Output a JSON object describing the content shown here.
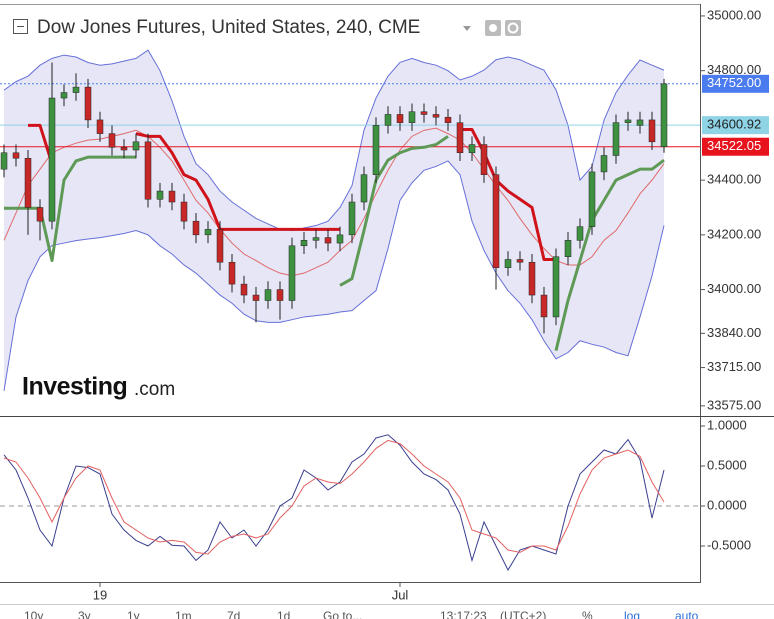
{
  "header": {
    "title": "Dow Jones Futures, United States, 240, CME"
  },
  "logo": {
    "name": "Investing",
    "suffix": ".com"
  },
  "toolbar": [
    "10y",
    "3y",
    "1y",
    "1m",
    "7d",
    "1d",
    "Go to...",
    "13:17:23",
    "(UTC+2)",
    "%",
    "log",
    "auto"
  ],
  "chart_data": [
    {
      "type": "candlestick",
      "title": "Dow Jones Futures, United States, 240, CME",
      "categories": [
        null,
        null,
        null,
        null,
        null,
        null,
        null,
        null,
        "19",
        null,
        null,
        null,
        null,
        null,
        null,
        null,
        null,
        null,
        null,
        null,
        null,
        null,
        null,
        null,
        null,
        null,
        null,
        null,
        null,
        null,
        null,
        null,
        null,
        "Jul",
        null,
        null,
        null,
        null,
        null,
        null,
        null,
        null,
        null,
        null,
        null,
        null,
        null,
        null,
        null,
        null,
        null,
        null,
        null,
        null,
        null,
        null
      ],
      "open": [
        34440,
        34500,
        34480,
        34300,
        34250,
        34700,
        34720,
        34740,
        34620,
        34570,
        34520,
        34510,
        34540,
        34330,
        34360,
        34320,
        34250,
        34200,
        34220,
        34100,
        34020,
        33980,
        33960,
        34000,
        33960,
        34160,
        34180,
        34190,
        34170,
        34200,
        34320,
        34420,
        34600,
        34640,
        34610,
        34650,
        34640,
        34630,
        34610,
        34500,
        34530,
        34420,
        34080,
        34110,
        34100,
        33980,
        33900,
        34120,
        34180,
        34230,
        34430,
        34490,
        34610,
        34600,
        34620,
        34522
      ],
      "high": [
        34530,
        34530,
        34510,
        34330,
        34830,
        34750,
        34790,
        34770,
        34650,
        34600,
        34550,
        34570,
        34570,
        34390,
        34390,
        34350,
        34280,
        34250,
        34250,
        34130,
        34050,
        34010,
        34030,
        34030,
        34190,
        34210,
        34220,
        34220,
        34230,
        34350,
        34450,
        34630,
        34670,
        34670,
        34680,
        34680,
        34670,
        34660,
        34640,
        34560,
        34560,
        34450,
        34140,
        34140,
        34130,
        34010,
        34150,
        34210,
        34260,
        34460,
        34520,
        34640,
        34650,
        34650,
        34650,
        34770
      ],
      "low": [
        34410,
        34450,
        34200,
        34180,
        34220,
        34670,
        34690,
        34590,
        34540,
        34490,
        34480,
        34480,
        34300,
        34300,
        34290,
        34220,
        34170,
        34170,
        34070,
        33990,
        33950,
        33880,
        33930,
        33890,
        33930,
        34130,
        34150,
        34140,
        34140,
        34170,
        34290,
        34390,
        34570,
        34580,
        34580,
        34610,
        34600,
        34580,
        34470,
        34470,
        34390,
        34000,
        34050,
        34070,
        33950,
        33840,
        33870,
        34090,
        34150,
        34200,
        34400,
        34460,
        34580,
        34570,
        34510,
        34500
      ],
      "close": [
        34500,
        34480,
        34300,
        34250,
        34700,
        34720,
        34740,
        34620,
        34570,
        34520,
        34510,
        34540,
        34330,
        34360,
        34320,
        34250,
        34200,
        34220,
        34100,
        34020,
        33980,
        33960,
        34000,
        33960,
        34160,
        34180,
        34190,
        34170,
        34200,
        34320,
        34420,
        34600,
        34640,
        34610,
        34650,
        34640,
        34630,
        34610,
        34500,
        34530,
        34420,
        34080,
        34110,
        34100,
        33980,
        33900,
        34120,
        34180,
        34230,
        34430,
        34490,
        34610,
        34620,
        34620,
        34540,
        34752
      ],
      "up_color": "#3f9142",
      "down_color": "#c62828",
      "band": {
        "fill": "#e6e6f6",
        "upper": {
          "color": "#6670d8",
          "values": [
            34729,
            34760,
            34780,
            34820,
            34845,
            34857,
            34850,
            34830,
            34820,
            34825,
            34835,
            34845,
            34875,
            34800,
            34690,
            34560,
            34460,
            34420,
            34360,
            34320,
            34290,
            34260,
            34240,
            34220,
            34216,
            34225,
            34234,
            34250,
            34300,
            34380,
            34582,
            34700,
            34780,
            34830,
            34845,
            34830,
            34820,
            34800,
            34766,
            34780,
            34802,
            34840,
            34850,
            34840,
            34820,
            34802,
            34730,
            34600,
            34400,
            34450,
            34619,
            34720,
            34784,
            34839,
            34820,
            34802
          ]
        },
        "lower": {
          "color": "#6670d8",
          "values": [
            33630,
            33900,
            34033,
            34120,
            34161,
            34170,
            34179,
            34185,
            34190,
            34197,
            34205,
            34216,
            34200,
            34160,
            34130,
            34090,
            34060,
            34020,
            33980,
            33950,
            33910,
            33886,
            33880,
            33880,
            33890,
            33900,
            33905,
            33910,
            33918,
            33923,
            33960,
            33996,
            34150,
            34326,
            34390,
            34436,
            34450,
            34470,
            34420,
            34250,
            34143,
            34060,
            33996,
            33950,
            33890,
            33813,
            33747,
            33770,
            33813,
            33800,
            33790,
            33770,
            33758,
            33900,
            34050,
            34234
          ]
        },
        "middle": {
          "color": "#e06a6a",
          "values": [
            34180,
            34280,
            34380,
            34440,
            34500,
            34520,
            34535,
            34546,
            34550,
            34560,
            34570,
            34582,
            34560,
            34520,
            34470,
            34400,
            34326,
            34280,
            34220,
            34170,
            34130,
            34106,
            34080,
            34060,
            34051,
            34060,
            34080,
            34100,
            34143,
            34180,
            34260,
            34350,
            34436,
            34510,
            34560,
            34582,
            34590,
            34570,
            34546,
            34500,
            34440,
            34380,
            34326,
            34260,
            34200,
            34150,
            34106,
            34090,
            34090,
            34120,
            34180,
            34216,
            34280,
            34350,
            34400,
            34460
          ]
        }
      },
      "series": [
        {
          "color": "#5e9a55",
          "values": [
            34297,
            34297,
            34297,
            34297,
            34106,
            34400,
            34470,
            34484,
            34484,
            34484,
            34484,
            34484,
            null,
            null,
            null,
            null,
            null,
            null,
            null,
            null,
            null,
            null,
            null,
            null,
            null,
            null,
            null,
            null,
            34015,
            34040,
            34216,
            34400,
            34473,
            34500,
            34516,
            34520,
            34530,
            34560,
            null,
            null,
            null,
            null,
            null,
            null,
            null,
            null,
            33777,
            33960,
            34106,
            34253,
            34326,
            34400,
            34420,
            34440,
            34440,
            34473
          ]
        },
        {
          "color": "#d0121b",
          "values": [
            null,
            null,
            34600,
            34600,
            34460,
            null,
            null,
            null,
            null,
            null,
            null,
            34570,
            34560,
            34560,
            34500,
            34420,
            34400,
            34330,
            34220,
            34220,
            34220,
            34220,
            34220,
            34220,
            34220,
            34220,
            34220,
            34220,
            34220,
            null,
            null,
            null,
            null,
            null,
            null,
            null,
            null,
            null,
            34585,
            34585,
            34500,
            34400,
            34360,
            34330,
            34300,
            34110,
            34110,
            null,
            null,
            null,
            null,
            null,
            null,
            null,
            null,
            null
          ]
        }
      ],
      "price_lines": [
        {
          "value": 34752,
          "label": "34752.00",
          "color": "#4a7cf0",
          "text_color": "#ffffff",
          "style": "dotted"
        },
        {
          "value": 34600.92,
          "label": "34600.92",
          "color": "#8fd4e6",
          "text_color": "#222222",
          "style": "solid"
        },
        {
          "value": 34522.05,
          "label": "34522.05",
          "color": "#e8141d",
          "text_color": "#ffffff",
          "style": "solid"
        }
      ],
      "ylim": [
        33538,
        35040
      ],
      "yticks": [
        {
          "value": 35000,
          "label": "35000.00"
        },
        {
          "value": 34800,
          "label": "34800.00"
        },
        {
          "value": 34400,
          "label": "34400.00"
        },
        {
          "value": 34200,
          "label": "34200.00"
        },
        {
          "value": 34000,
          "label": "34000.00"
        },
        {
          "value": 33840,
          "label": "33840.00"
        },
        {
          "value": 33715,
          "label": "33715.00"
        },
        {
          "value": 33575,
          "label": "33575.00"
        }
      ]
    },
    {
      "type": "line",
      "series": [
        {
          "color": "#3a3f8f",
          "values": [
            0.64,
            0.45,
            0.1,
            -0.3,
            -0.5,
            0.1,
            0.5,
            0.48,
            0.4,
            -0.1,
            -0.3,
            -0.43,
            -0.5,
            -0.38,
            -0.49,
            -0.5,
            -0.68,
            -0.55,
            -0.2,
            -0.4,
            -0.3,
            -0.5,
            -0.3,
            0.0,
            0.1,
            0.45,
            0.35,
            0.2,
            0.3,
            0.55,
            0.65,
            0.85,
            0.89,
            0.76,
            0.55,
            0.4,
            0.33,
            0.2,
            -0.1,
            -0.68,
            -0.2,
            -0.5,
            -0.8,
            -0.55,
            -0.5,
            -0.55,
            -0.6,
            0.0,
            0.4,
            0.55,
            0.7,
            0.65,
            0.83,
            0.58,
            -0.15,
            0.45
          ]
        },
        {
          "color": "#e46060",
          "values": [
            0.6,
            0.55,
            0.35,
            0.1,
            -0.2,
            0.1,
            0.35,
            0.5,
            0.45,
            0.1,
            -0.2,
            -0.3,
            -0.4,
            -0.45,
            -0.43,
            -0.45,
            -0.58,
            -0.6,
            -0.45,
            -0.38,
            -0.35,
            -0.4,
            -0.35,
            -0.15,
            0.0,
            0.25,
            0.35,
            0.3,
            0.28,
            0.4,
            0.55,
            0.72,
            0.82,
            0.78,
            0.65,
            0.5,
            0.4,
            0.3,
            0.1,
            -0.3,
            -0.35,
            -0.4,
            -0.55,
            -0.58,
            -0.5,
            -0.5,
            -0.55,
            -0.25,
            0.15,
            0.45,
            0.6,
            0.65,
            0.7,
            0.62,
            0.3,
            0.05
          ]
        }
      ],
      "ylim": [
        -0.95,
        1.1125
      ],
      "yticks": [
        {
          "value": 1,
          "label": "1.0000"
        },
        {
          "value": 0.5,
          "label": "0.5000"
        },
        {
          "value": 0,
          "label": "0.0000"
        },
        {
          "value": -0.5,
          "label": "-0.5000"
        }
      ]
    }
  ]
}
